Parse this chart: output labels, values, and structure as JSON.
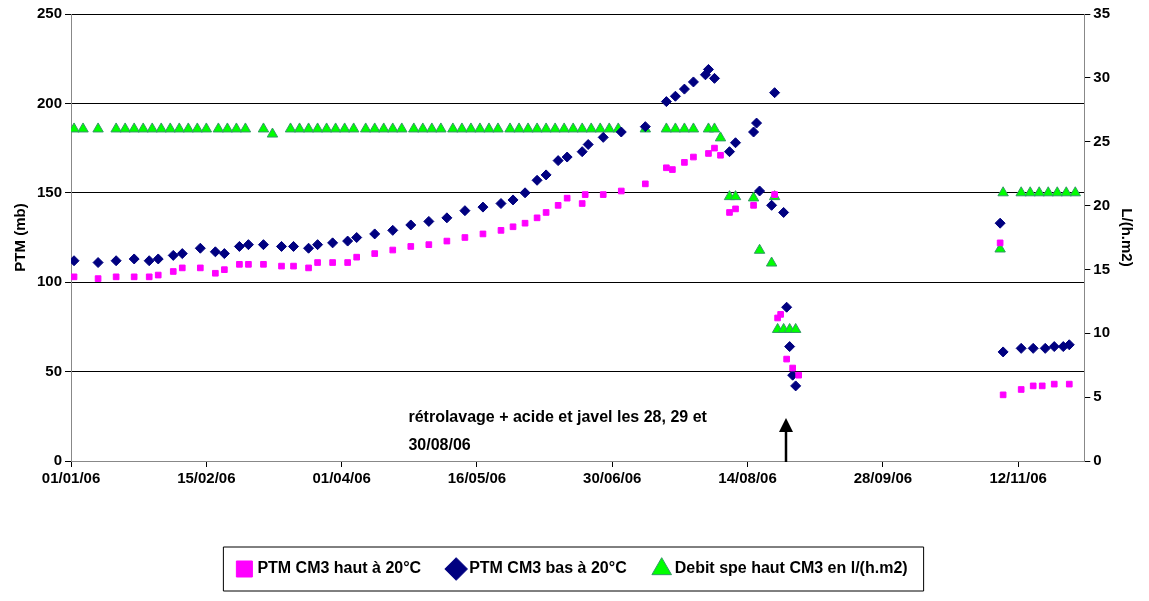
{
  "chart_data": {
    "type": "scatter",
    "ylabel": "PTM (mb)",
    "y2label": "L/(h.m2)",
    "xlim": [
      "2006-01-01",
      "2006-12-04"
    ],
    "xticks": [
      {
        "value": "2006-01-01",
        "label": "01/01/06"
      },
      {
        "value": "2006-02-15",
        "label": "15/02/06"
      },
      {
        "value": "2006-04-01",
        "label": "01/04/06"
      },
      {
        "value": "2006-05-16",
        "label": "16/05/06"
      },
      {
        "value": "2006-06-30",
        "label": "30/06/06"
      },
      {
        "value": "2006-08-14",
        "label": "14/08/06"
      },
      {
        "value": "2006-09-28",
        "label": "28/09/06"
      },
      {
        "value": "2006-11-12",
        "label": "12/11/06"
      }
    ],
    "ylim": [
      0,
      250
    ],
    "yticks": [
      0,
      50,
      100,
      150,
      200,
      250
    ],
    "y2lim": [
      0,
      35
    ],
    "y2ticks": [
      0,
      5,
      10,
      15,
      20,
      25,
      30,
      35
    ],
    "grid": "y",
    "legend": "bottom",
    "annotations": [
      "rétrolavage + acide et javel les 28, 29 et 30/08/06"
    ],
    "series": [
      {
        "name": "PTM CM3 haut à 20°C",
        "color": "#ff00ff",
        "marker": "square",
        "x": [
          "2006-01-02",
          "2006-01-10",
          "2006-01-16",
          "2006-01-22",
          "2006-01-27",
          "2006-01-30",
          "2006-02-04",
          "2006-02-07",
          "2006-02-13",
          "2006-02-18",
          "2006-02-21",
          "2006-02-26",
          "2006-03-01",
          "2006-03-06",
          "2006-03-12",
          "2006-03-16",
          "2006-03-21",
          "2006-03-24",
          "2006-03-29",
          "2006-04-03",
          "2006-04-06",
          "2006-04-12",
          "2006-04-18",
          "2006-04-24",
          "2006-04-30",
          "2006-05-06",
          "2006-05-12",
          "2006-05-18",
          "2006-05-24",
          "2006-05-28",
          "2006-06-01",
          "2006-06-05",
          "2006-06-08",
          "2006-06-12",
          "2006-06-15",
          "2006-06-20",
          "2006-06-21",
          "2006-06-27",
          "2006-07-03",
          "2006-07-11",
          "2006-07-18",
          "2006-07-20",
          "2006-07-24",
          "2006-07-27",
          "2006-08-01",
          "2006-08-03",
          "2006-08-05",
          "2006-08-08",
          "2006-08-10",
          "2006-08-16",
          "2006-08-23",
          "2006-08-24",
          "2006-08-25",
          "2006-08-27",
          "2006-08-29",
          "2006-08-31",
          "2006-11-06",
          "2006-11-07",
          "2006-11-13",
          "2006-11-17",
          "2006-11-20",
          "2006-11-24",
          "2006-11-29"
        ],
        "values": [
          103,
          102,
          103,
          103,
          103,
          104,
          106,
          108,
          108,
          105,
          107,
          110,
          110,
          110,
          109,
          109,
          108,
          111,
          111,
          111,
          114,
          116,
          118,
          120,
          121,
          123,
          125,
          127,
          129,
          131,
          133,
          136,
          139,
          143,
          147,
          144,
          149,
          149,
          151,
          155,
          164,
          163,
          167,
          170,
          172,
          175,
          171,
          139,
          141,
          143,
          149,
          80,
          82,
          57,
          52,
          48,
          122,
          37,
          40,
          42,
          42,
          43,
          43
        ]
      },
      {
        "name": "PTM CM3 bas à 20°C",
        "color": "#000080",
        "marker": "diamond",
        "x": [
          "2006-01-02",
          "2006-01-10",
          "2006-01-16",
          "2006-01-22",
          "2006-01-27",
          "2006-01-30",
          "2006-02-04",
          "2006-02-07",
          "2006-02-13",
          "2006-02-18",
          "2006-02-21",
          "2006-02-26",
          "2006-03-01",
          "2006-03-06",
          "2006-03-12",
          "2006-03-16",
          "2006-03-21",
          "2006-03-24",
          "2006-03-29",
          "2006-04-03",
          "2006-04-06",
          "2006-04-12",
          "2006-04-18",
          "2006-04-24",
          "2006-04-30",
          "2006-05-06",
          "2006-05-12",
          "2006-05-18",
          "2006-05-24",
          "2006-05-28",
          "2006-06-01",
          "2006-06-05",
          "2006-06-08",
          "2006-06-12",
          "2006-06-15",
          "2006-06-20",
          "2006-06-22",
          "2006-06-27",
          "2006-07-03",
          "2006-07-11",
          "2006-07-18",
          "2006-07-21",
          "2006-07-24",
          "2006-07-27",
          "2006-07-31",
          "2006-08-01",
          "2006-08-03",
          "2006-08-08",
          "2006-08-10",
          "2006-08-16",
          "2006-08-17",
          "2006-08-18",
          "2006-08-22",
          "2006-08-23",
          "2006-08-26",
          "2006-08-27",
          "2006-08-28",
          "2006-08-29",
          "2006-08-30",
          "2006-11-06",
          "2006-11-07",
          "2006-11-13",
          "2006-11-17",
          "2006-11-21",
          "2006-11-24",
          "2006-11-27",
          "2006-11-29"
        ],
        "values": [
          112,
          111,
          112,
          113,
          112,
          113,
          115,
          116,
          119,
          117,
          116,
          120,
          121,
          121,
          120,
          120,
          119,
          121,
          122,
          123,
          125,
          127,
          129,
          132,
          134,
          136,
          140,
          142,
          144,
          146,
          150,
          157,
          160,
          168,
          170,
          173,
          177,
          181,
          184,
          187,
          201,
          204,
          208,
          212,
          216,
          219,
          214,
          173,
          178,
          184,
          189,
          151,
          143,
          206,
          139,
          86,
          64,
          48,
          42,
          133,
          61,
          63,
          63,
          63,
          64,
          64,
          65
        ]
      },
      {
        "name": "Debit spe haut CM3 en l/(h.m2)",
        "color": "#00ff00",
        "marker": "triangle",
        "axis": "y2",
        "x": [
          "2006-01-02",
          "2006-01-05",
          "2006-01-10",
          "2006-01-16",
          "2006-01-19",
          "2006-01-22",
          "2006-01-25",
          "2006-01-28",
          "2006-01-31",
          "2006-02-03",
          "2006-02-06",
          "2006-02-09",
          "2006-02-12",
          "2006-02-15",
          "2006-02-19",
          "2006-02-22",
          "2006-02-25",
          "2006-02-28",
          "2006-03-06",
          "2006-03-09",
          "2006-03-15",
          "2006-03-18",
          "2006-03-21",
          "2006-03-24",
          "2006-03-27",
          "2006-03-30",
          "2006-04-02",
          "2006-04-05",
          "2006-04-09",
          "2006-04-12",
          "2006-04-15",
          "2006-04-18",
          "2006-04-21",
          "2006-04-25",
          "2006-04-28",
          "2006-05-01",
          "2006-05-04",
          "2006-05-08",
          "2006-05-11",
          "2006-05-14",
          "2006-05-17",
          "2006-05-20",
          "2006-05-23",
          "2006-05-27",
          "2006-05-30",
          "2006-06-02",
          "2006-06-05",
          "2006-06-08",
          "2006-06-11",
          "2006-06-14",
          "2006-06-17",
          "2006-06-20",
          "2006-06-23",
          "2006-06-26",
          "2006-06-29",
          "2006-07-02",
          "2006-07-11",
          "2006-07-18",
          "2006-07-21",
          "2006-07-24",
          "2006-07-27",
          "2006-08-01",
          "2006-08-03",
          "2006-08-05",
          "2006-08-08",
          "2006-08-10",
          "2006-08-16",
          "2006-08-18",
          "2006-08-22",
          "2006-08-23",
          "2006-08-24",
          "2006-08-26",
          "2006-08-28",
          "2006-08-30",
          "2006-11-06",
          "2006-11-07",
          "2006-11-13",
          "2006-11-16",
          "2006-11-19",
          "2006-11-22",
          "2006-11-25",
          "2006-11-28",
          "2006-12-01"
        ],
        "values": [
          26,
          26,
          26,
          26,
          26,
          26,
          26,
          26,
          26,
          26,
          26,
          26,
          26,
          26,
          26,
          26,
          26,
          26,
          26,
          25.6,
          26,
          26,
          26,
          26,
          26,
          26,
          26,
          26,
          26,
          26,
          26,
          26,
          26,
          26,
          26,
          26,
          26,
          26,
          26,
          26,
          26,
          26,
          26,
          26,
          26,
          26,
          26,
          26,
          26,
          26,
          26,
          26,
          26,
          26,
          26,
          26,
          26,
          26,
          26,
          26,
          26,
          26,
          26,
          25.3,
          20.7,
          20.7,
          20.6,
          16.5,
          15.5,
          20.7,
          10.3,
          10.3,
          10.3,
          10.3,
          16.6,
          21,
          21,
          21,
          21,
          21,
          21,
          21,
          21
        ]
      }
    ]
  }
}
